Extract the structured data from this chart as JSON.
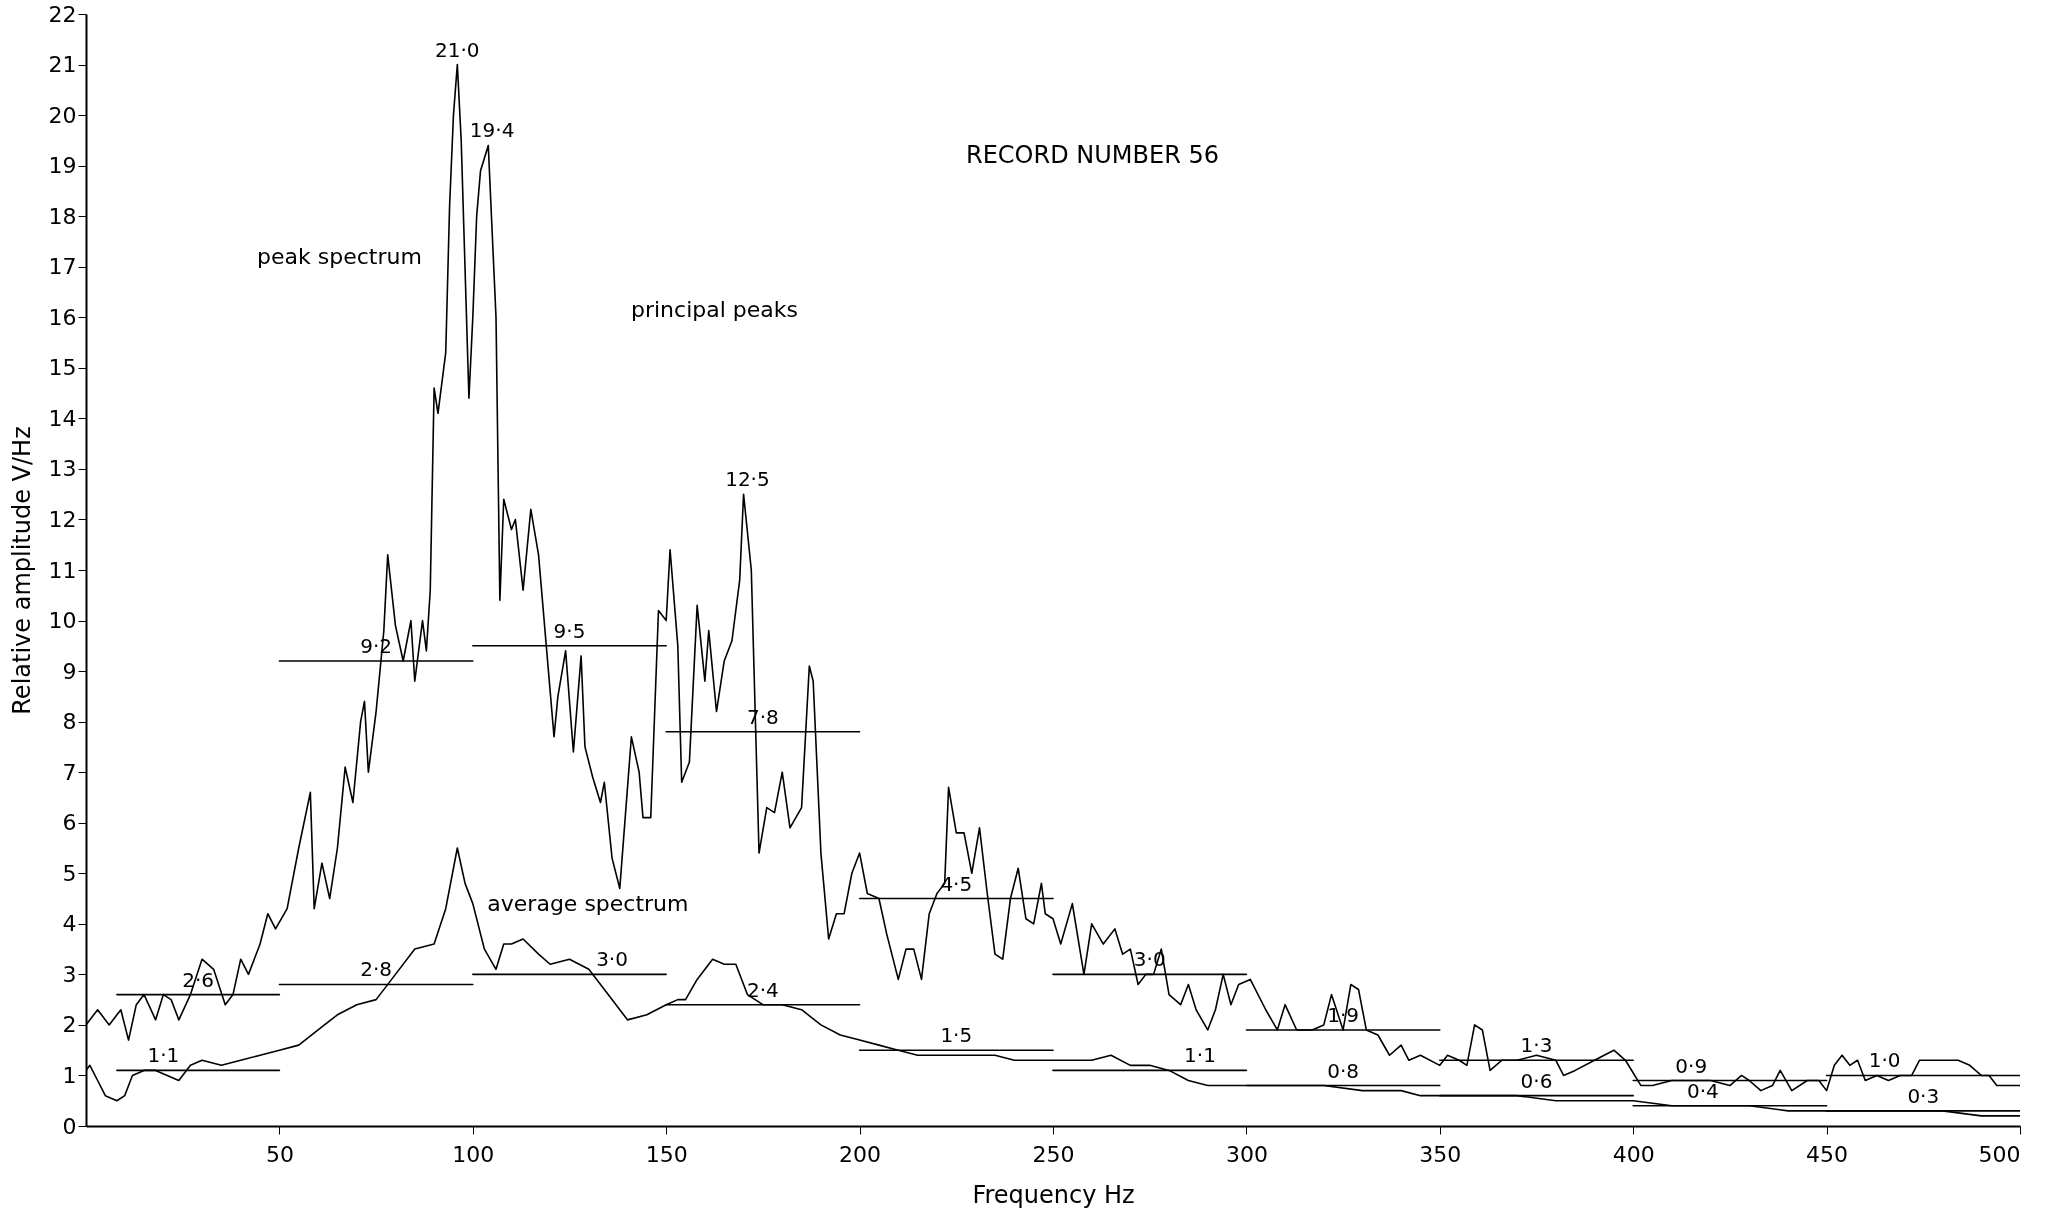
{
  "chart_data": {
    "type": "line",
    "title": "RECORD NUMBER 56",
    "xlabel": "Frequency  Hz",
    "ylabel": "Relative amplitude   V/Hz",
    "xlim": [
      0,
      500
    ],
    "xticks": [
      50,
      100,
      150,
      200,
      250,
      300,
      350,
      400,
      450,
      500
    ],
    "ylim": [
      0,
      22
    ],
    "yticks": [
      0,
      1,
      2,
      3,
      4,
      5,
      6,
      7,
      8,
      9,
      10,
      11,
      12,
      13,
      14,
      15,
      16,
      17,
      18,
      19,
      20,
      21,
      22
    ],
    "grid": false,
    "line_style": "solid",
    "marker": "none",
    "series": [
      {
        "name": "peak spectrum",
        "color": "#000000",
        "x": [
          0,
          3,
          6,
          9,
          11,
          13,
          15,
          18,
          20,
          22,
          24,
          27,
          30,
          33,
          36,
          38,
          40,
          42,
          45,
          47,
          49,
          52,
          55,
          58,
          59,
          61,
          63,
          65,
          67,
          69,
          71,
          72,
          73,
          75,
          77,
          78,
          80,
          82,
          84,
          85,
          87,
          88,
          89,
          90,
          91,
          93,
          94,
          95,
          96,
          97,
          99,
          100,
          101,
          102,
          104,
          106,
          107,
          108,
          110,
          111,
          113,
          115,
          117,
          119,
          121,
          122,
          124,
          126,
          128,
          129,
          131,
          133,
          134,
          136,
          138,
          139,
          141,
          143,
          144,
          146,
          148,
          150,
          151,
          153,
          154,
          156,
          158,
          160,
          161,
          163,
          165,
          167,
          169,
          170,
          172,
          174,
          176,
          178,
          180,
          182,
          185,
          187,
          188,
          190,
          192,
          194,
          196,
          198,
          200,
          202,
          205,
          207,
          210,
          212,
          214,
          216,
          218,
          220,
          222,
          223,
          225,
          227,
          229,
          231,
          233,
          235,
          237,
          239,
          241,
          243,
          245,
          247,
          248,
          250,
          252,
          255,
          258,
          260,
          263,
          266,
          268,
          270,
          272,
          274,
          276,
          278,
          280,
          283,
          285,
          287,
          290,
          292,
          294,
          296,
          298,
          301,
          305,
          308,
          310,
          313,
          317,
          320,
          322,
          325,
          327,
          329,
          331,
          334,
          337,
          340,
          342,
          345,
          350,
          352,
          355,
          357,
          359,
          361,
          363,
          366,
          370,
          375,
          380,
          382,
          385,
          390,
          395,
          398,
          402,
          405,
          410,
          415,
          420,
          425,
          428,
          430,
          433,
          436,
          438,
          441,
          445,
          448,
          450,
          452,
          454,
          456,
          458,
          460,
          463,
          466,
          469,
          472,
          474,
          476,
          478,
          481,
          484,
          487,
          490,
          492,
          494,
          497,
          500
        ],
        "values": [
          2.0,
          2.3,
          2.0,
          2.3,
          1.7,
          2.4,
          2.6,
          2.1,
          2.6,
          2.5,
          2.1,
          2.6,
          3.3,
          3.1,
          2.4,
          2.6,
          3.3,
          3.0,
          3.6,
          4.2,
          3.9,
          4.3,
          5.5,
          6.6,
          4.3,
          5.2,
          4.5,
          5.5,
          7.1,
          6.4,
          8.0,
          8.4,
          7.0,
          8.2,
          9.8,
          11.3,
          9.9,
          9.2,
          10.0,
          8.8,
          10.0,
          9.4,
          10.6,
          14.6,
          14.1,
          15.3,
          18.2,
          20.0,
          21.0,
          19.5,
          14.4,
          16.0,
          18.0,
          18.9,
          19.4,
          16.0,
          10.4,
          12.4,
          11.8,
          12.0,
          10.6,
          12.2,
          11.3,
          9.5,
          7.7,
          8.5,
          9.4,
          7.4,
          9.3,
          7.5,
          6.9,
          6.4,
          6.8,
          5.3,
          4.7,
          5.7,
          7.7,
          7.0,
          6.1,
          6.1,
          10.2,
          10.0,
          11.4,
          9.5,
          6.8,
          7.2,
          10.3,
          8.8,
          9.8,
          8.2,
          9.2,
          9.6,
          10.8,
          12.5,
          11.0,
          5.4,
          6.3,
          6.2,
          7.0,
          5.9,
          6.3,
          9.1,
          8.8,
          5.4,
          3.7,
          4.2,
          4.2,
          5.0,
          5.4,
          4.6,
          4.5,
          3.8,
          2.9,
          3.5,
          3.5,
          2.9,
          4.2,
          4.6,
          4.8,
          6.7,
          5.8,
          5.8,
          5.0,
          5.9,
          4.6,
          3.4,
          3.3,
          4.5,
          5.1,
          4.1,
          4.0,
          4.8,
          4.2,
          4.1,
          3.6,
          4.4,
          3.0,
          4.0,
          3.6,
          3.9,
          3.4,
          3.5,
          2.8,
          3.0,
          3.0,
          3.5,
          2.6,
          2.4,
          2.8,
          2.3,
          1.9,
          2.3,
          3.0,
          2.4,
          2.8,
          2.9,
          2.3,
          1.9,
          2.4,
          1.9,
          1.9,
          2.0,
          2.6,
          1.9,
          2.8,
          2.7,
          1.9,
          1.8,
          1.4,
          1.6,
          1.3,
          1.4,
          1.2,
          1.4,
          1.3,
          1.2,
          2.0,
          1.9,
          1.1,
          1.3,
          1.3,
          1.4,
          1.3,
          1.0,
          1.1,
          1.3,
          1.5,
          1.3,
          0.8,
          0.8,
          0.9,
          0.9,
          0.9,
          0.8,
          1.0,
          0.9,
          0.7,
          0.8,
          1.1,
          0.7,
          0.9,
          0.9,
          0.7,
          1.2,
          1.4,
          1.2,
          1.3,
          0.9,
          1.0,
          0.9,
          1.0,
          1.0,
          1.3,
          1.3,
          1.3,
          1.3,
          1.3,
          1.2,
          1.0,
          1.0,
          0.8,
          0.8,
          0.8
        ]
      },
      {
        "name": "average spectrum",
        "color": "#000000",
        "x": [
          0,
          1,
          3,
          5,
          8,
          10,
          12,
          15,
          18,
          21,
          24,
          27,
          30,
          35,
          40,
          45,
          50,
          55,
          60,
          65,
          70,
          75,
          80,
          85,
          90,
          93,
          96,
          98,
          100,
          103,
          106,
          108,
          110,
          113,
          117,
          120,
          125,
          130,
          135,
          140,
          145,
          150,
          153,
          155,
          158,
          162,
          165,
          168,
          171,
          175,
          180,
          185,
          190,
          195,
          200,
          205,
          210,
          215,
          220,
          225,
          230,
          235,
          240,
          245,
          250,
          255,
          260,
          265,
          270,
          275,
          280,
          285,
          290,
          295,
          300,
          310,
          320,
          330,
          340,
          345,
          350,
          360,
          370,
          380,
          390,
          400,
          410,
          420,
          430,
          440,
          450,
          460,
          470,
          480,
          490,
          500
        ],
        "values": [
          1.1,
          1.2,
          0.9,
          0.6,
          0.5,
          0.6,
          1.0,
          1.1,
          1.1,
          1.0,
          0.9,
          1.2,
          1.3,
          1.2,
          1.3,
          1.4,
          1.5,
          1.6,
          1.9,
          2.2,
          2.4,
          2.5,
          3.0,
          3.5,
          3.6,
          4.3,
          5.5,
          4.8,
          4.4,
          3.5,
          3.1,
          3.6,
          3.6,
          3.7,
          3.4,
          3.2,
          3.3,
          3.1,
          2.6,
          2.1,
          2.2,
          2.4,
          2.5,
          2.5,
          2.9,
          3.3,
          3.2,
          3.2,
          2.6,
          2.4,
          2.4,
          2.3,
          2.0,
          1.8,
          1.7,
          1.6,
          1.5,
          1.4,
          1.4,
          1.4,
          1.4,
          1.4,
          1.3,
          1.3,
          1.3,
          1.3,
          1.3,
          1.4,
          1.2,
          1.2,
          1.1,
          0.9,
          0.8,
          0.8,
          0.8,
          0.8,
          0.8,
          0.7,
          0.7,
          0.6,
          0.6,
          0.6,
          0.6,
          0.5,
          0.5,
          0.5,
          0.4,
          0.4,
          0.4,
          0.3,
          0.3,
          0.3,
          0.3,
          0.3,
          0.2,
          0.2
        ]
      },
      {
        "color": "#000000",
        "x": [
          8,
          50
        ],
        "values": [
          2.6,
          2.6
        ]
      },
      {
        "color": "#000000",
        "x": [
          50,
          100
        ],
        "values": [
          9.2,
          9.2
        ]
      },
      {
        "color": "#000000",
        "x": [
          100,
          150
        ],
        "values": [
          9.5,
          9.5
        ]
      },
      {
        "color": "#000000",
        "x": [
          150,
          200
        ],
        "values": [
          7.8,
          7.8
        ]
      },
      {
        "color": "#000000",
        "x": [
          200,
          250
        ],
        "values": [
          4.5,
          4.5
        ]
      },
      {
        "color": "#000000",
        "x": [
          250,
          300
        ],
        "values": [
          3.0,
          3.0
        ]
      },
      {
        "color": "#000000",
        "x": [
          300,
          350
        ],
        "values": [
          1.9,
          1.9
        ]
      },
      {
        "color": "#000000",
        "x": [
          350,
          400
        ],
        "values": [
          1.3,
          1.3
        ]
      },
      {
        "color": "#000000",
        "x": [
          400,
          450
        ],
        "values": [
          0.9,
          0.9
        ]
      },
      {
        "color": "#000000",
        "x": [
          450,
          500
        ],
        "values": [
          1.0,
          1.0
        ]
      },
      {
        "color": "#000000",
        "x": [
          8,
          50
        ],
        "values": [
          1.1,
          1.1
        ]
      },
      {
        "color": "#000000",
        "x": [
          50,
          100
        ],
        "values": [
          2.8,
          2.8
        ]
      },
      {
        "color": "#000000",
        "x": [
          100,
          150
        ],
        "values": [
          3.0,
          3.0
        ]
      },
      {
        "color": "#000000",
        "x": [
          150,
          200
        ],
        "values": [
          2.4,
          2.4
        ]
      },
      {
        "color": "#000000",
        "x": [
          200,
          250
        ],
        "values": [
          1.5,
          1.5
        ]
      },
      {
        "color": "#000000",
        "x": [
          250,
          300
        ],
        "values": [
          1.1,
          1.1
        ]
      },
      {
        "color": "#000000",
        "x": [
          300,
          350
        ],
        "values": [
          0.8,
          0.8
        ]
      },
      {
        "color": "#000000",
        "x": [
          350,
          400
        ],
        "values": [
          0.6,
          0.6
        ]
      },
      {
        "color": "#000000",
        "x": [
          400,
          450
        ],
        "values": [
          0.4,
          0.4
        ]
      },
      {
        "color": "#000000",
        "x": [
          450,
          500
        ],
        "values": [
          0.3,
          0.3
        ]
      }
    ],
    "annotations": [
      {
        "text": "21·0",
        "x": 96,
        "y": 21.0
      },
      {
        "text": "19·4",
        "x": 105,
        "y": 19.4
      },
      {
        "text": "12·5",
        "x": 171,
        "y": 12.5
      },
      "principal peaks",
      {
        "text": "2·6",
        "x": 29,
        "y": 2.6
      },
      {
        "text": "9·2",
        "x": 75,
        "y": 9.2
      },
      {
        "text": "9·5",
        "x": 125,
        "y": 9.5
      },
      {
        "text": "7·8",
        "x": 175,
        "y": 7.8
      },
      {
        "text": "4·5",
        "x": 225,
        "y": 4.5
      },
      {
        "text": "3·0",
        "x": 275,
        "y": 3.0
      },
      {
        "text": "1·9",
        "x": 325,
        "y": 1.9
      },
      {
        "text": "1·3",
        "x": 375,
        "y": 1.3
      },
      {
        "text": "0·9",
        "x": 415,
        "y": 0.9
      },
      {
        "text": "1·0",
        "x": 465,
        "y": 1.0
      },
      {
        "text": "1·1",
        "x": 20,
        "y": 1.1
      },
      {
        "text": "2·8",
        "x": 75,
        "y": 2.8
      },
      {
        "text": "3·0",
        "x": 136,
        "y": 3.0
      },
      {
        "text": "2·4",
        "x": 175,
        "y": 2.4
      },
      {
        "text": "1·5",
        "x": 225,
        "y": 1.5
      },
      {
        "text": "1·1",
        "x": 288,
        "y": 1.1
      },
      {
        "text": "0·8",
        "x": 325,
        "y": 0.8
      },
      {
        "text": "0·6",
        "x": 375,
        "y": 0.6
      },
      {
        "text": "0·4",
        "x": 418,
        "y": 0.4
      },
      {
        "text": "0·3",
        "x": 475,
        "y": 0.3
      }
    ]
  }
}
